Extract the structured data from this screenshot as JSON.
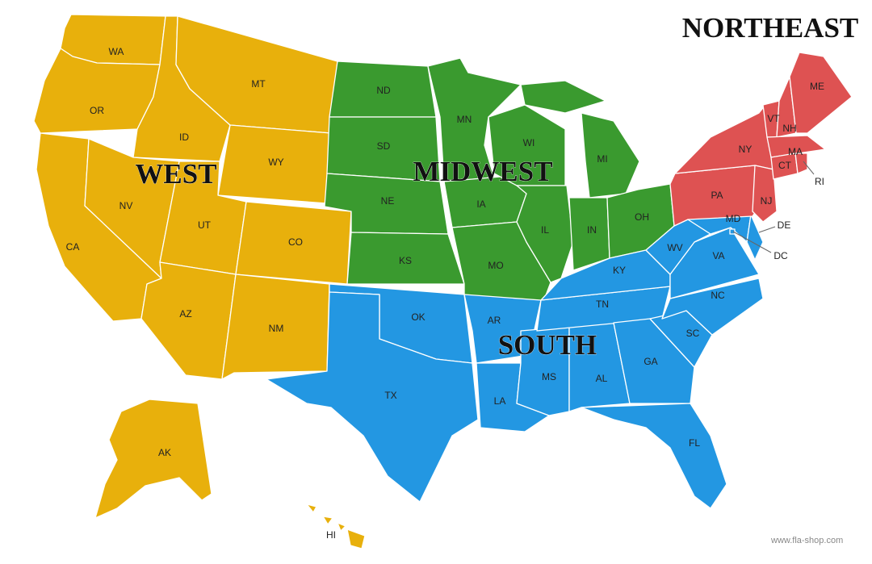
{
  "regions": {
    "west": {
      "label": "WEST",
      "color": "#E8B00C"
    },
    "midwest": {
      "label": "MIDWEST",
      "color": "#3A9A2F"
    },
    "south": {
      "label": "SOUTH",
      "color": "#2397E2"
    },
    "northeast": {
      "label": "NORTHEAST",
      "color": "#DE5252"
    }
  },
  "states": [
    {
      "abbr": "WA",
      "region": "west"
    },
    {
      "abbr": "OR",
      "region": "west"
    },
    {
      "abbr": "CA",
      "region": "west"
    },
    {
      "abbr": "ID",
      "region": "west"
    },
    {
      "abbr": "NV",
      "region": "west"
    },
    {
      "abbr": "MT",
      "region": "west"
    },
    {
      "abbr": "WY",
      "region": "west"
    },
    {
      "abbr": "UT",
      "region": "west"
    },
    {
      "abbr": "CO",
      "region": "west"
    },
    {
      "abbr": "AZ",
      "region": "west"
    },
    {
      "abbr": "NM",
      "region": "west"
    },
    {
      "abbr": "AK",
      "region": "west"
    },
    {
      "abbr": "HI",
      "region": "west"
    },
    {
      "abbr": "ND",
      "region": "midwest"
    },
    {
      "abbr": "SD",
      "region": "midwest"
    },
    {
      "abbr": "NE",
      "region": "midwest"
    },
    {
      "abbr": "KS",
      "region": "midwest"
    },
    {
      "abbr": "MN",
      "region": "midwest"
    },
    {
      "abbr": "IA",
      "region": "midwest"
    },
    {
      "abbr": "MO",
      "region": "midwest"
    },
    {
      "abbr": "WI",
      "region": "midwest"
    },
    {
      "abbr": "IL",
      "region": "midwest"
    },
    {
      "abbr": "MI",
      "region": "midwest"
    },
    {
      "abbr": "IN",
      "region": "midwest"
    },
    {
      "abbr": "OH",
      "region": "midwest"
    },
    {
      "abbr": "OK",
      "region": "south"
    },
    {
      "abbr": "TX",
      "region": "south"
    },
    {
      "abbr": "AR",
      "region": "south"
    },
    {
      "abbr": "LA",
      "region": "south"
    },
    {
      "abbr": "MS",
      "region": "south"
    },
    {
      "abbr": "AL",
      "region": "south"
    },
    {
      "abbr": "TN",
      "region": "south"
    },
    {
      "abbr": "KY",
      "region": "south"
    },
    {
      "abbr": "GA",
      "region": "south"
    },
    {
      "abbr": "FL",
      "region": "south"
    },
    {
      "abbr": "SC",
      "region": "south"
    },
    {
      "abbr": "NC",
      "region": "south"
    },
    {
      "abbr": "VA",
      "region": "south"
    },
    {
      "abbr": "WV",
      "region": "south"
    },
    {
      "abbr": "MD",
      "region": "south"
    },
    {
      "abbr": "DE",
      "region": "south"
    },
    {
      "abbr": "DC",
      "region": "south"
    },
    {
      "abbr": "PA",
      "region": "northeast"
    },
    {
      "abbr": "NY",
      "region": "northeast"
    },
    {
      "abbr": "NJ",
      "region": "northeast"
    },
    {
      "abbr": "VT",
      "region": "northeast"
    },
    {
      "abbr": "NH",
      "region": "northeast"
    },
    {
      "abbr": "ME",
      "region": "northeast"
    },
    {
      "abbr": "MA",
      "region": "northeast"
    },
    {
      "abbr": "CT",
      "region": "northeast"
    },
    {
      "abbr": "RI",
      "region": "northeast"
    }
  ],
  "credit": "www.fla-shop.com"
}
